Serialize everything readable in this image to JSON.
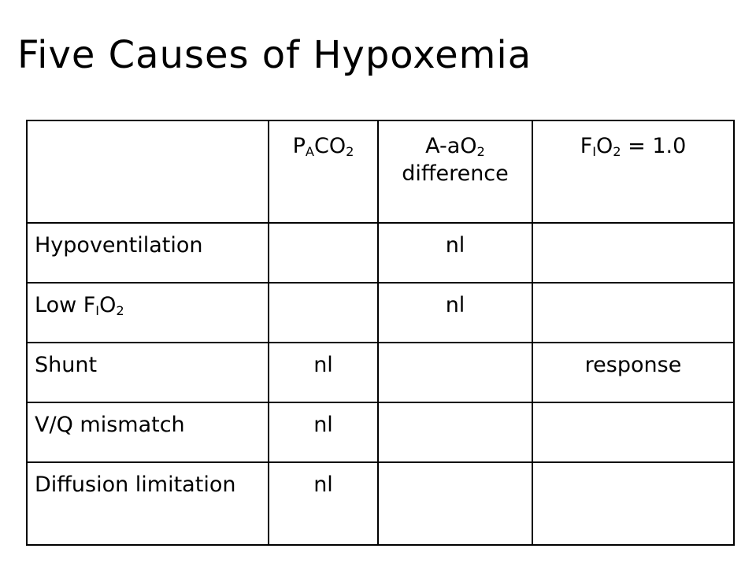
{
  "title": "Five Causes of Hypoxemia",
  "table": {
    "header": {
      "col1": {
        "base1": "P",
        "sub1": "A",
        "base2": "CO",
        "sub2": "2"
      },
      "col2": {
        "base1": "A-aO",
        "sub1": "2",
        "line2": "difference"
      },
      "col3": {
        "base1": "F",
        "sub1": "I",
        "base2": "O",
        "sub2": "2",
        "tail": " = 1.0"
      }
    },
    "rows": [
      {
        "label": "Hypoventilation",
        "paco2": "",
        "aa": "nl",
        "fio2": "",
        "fio2_text": ""
      },
      {
        "label": "Low F",
        "label_sub1": "I",
        "label_mid": "O",
        "label_sub2": "2",
        "paco2": "",
        "aa": "nl",
        "fio2": "",
        "fio2_text": ""
      },
      {
        "label": "Shunt",
        "paco2": "nl",
        "aa": "",
        "fio2": "",
        "fio2_text": " response"
      },
      {
        "label": "V/Q mismatch",
        "paco2": "nl",
        "aa": "",
        "fio2": "",
        "fio2_text": ""
      },
      {
        "label": "Diffusion limitation",
        "paco2": "nl",
        "aa": "",
        "fio2": "",
        "fio2_text": ""
      }
    ]
  }
}
